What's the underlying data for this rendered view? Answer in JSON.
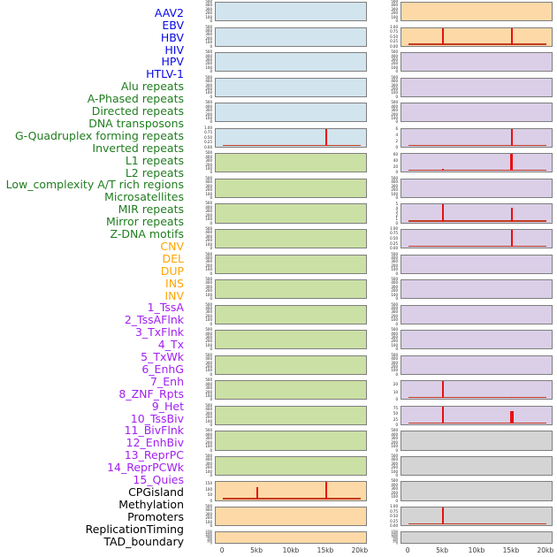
{
  "figure_title": "",
  "colors": {
    "spike": "#e81010",
    "baseline": "#c23b22",
    "panel_border": "#7e7e7e",
    "categories": {
      "virus": {
        "label": "#0808e8",
        "fill": "#d2e4ee"
      },
      "repeat": {
        "label": "#1f7d1f",
        "fill": "#cbe0a5"
      },
      "sv": {
        "label": "#ffa500",
        "fill": "#fdd9a7"
      },
      "chromatin": {
        "label": "#a21ff0",
        "fill": "#dacfe7"
      },
      "other": {
        "label": "#000000",
        "fill": "#d4d4d4"
      }
    }
  },
  "chart_data": {
    "type": "area",
    "layout": "grid-2-columns-22-rows, tracks listed column-major",
    "x": {
      "min": 0,
      "max": 20000,
      "tick_labels": [
        "0",
        "5kb",
        "10kb",
        "15kb",
        "20kb"
      ],
      "tick_values": [
        0,
        5000,
        10000,
        15000,
        20000
      ]
    },
    "xlabel": "",
    "ylabel": "",
    "grid": false,
    "legend": "none",
    "panels": {
      "left": [
        {
          "label": "AAV2",
          "cat": "virus",
          "yticks": [
            "500",
            "400",
            "300",
            "200",
            "100",
            "0"
          ],
          "ymax": 500,
          "spikes": [],
          "baseline": false
        },
        {
          "label": "EBV",
          "cat": "virus",
          "yticks": [
            "500",
            "400",
            "300",
            "200",
            "100",
            "0"
          ],
          "ymax": 500,
          "spikes": [],
          "baseline": false
        },
        {
          "label": "HBV",
          "cat": "virus",
          "yticks": [
            "500",
            "400",
            "300",
            "200",
            "100",
            "0"
          ],
          "ymax": 500,
          "spikes": [],
          "baseline": false
        },
        {
          "label": "HIV",
          "cat": "virus",
          "yticks": [
            "500",
            "400",
            "300",
            "200",
            "100",
            "0"
          ],
          "ymax": 500,
          "spikes": [],
          "baseline": false
        },
        {
          "label": "HPV",
          "cat": "virus",
          "yticks": [
            "500",
            "400",
            "300",
            "200",
            "100",
            "0"
          ],
          "ymax": 500,
          "spikes": [],
          "baseline": false
        },
        {
          "label": "HTLV-1",
          "cat": "virus",
          "yticks": [
            "1.00",
            "0.75",
            "0.50",
            "0.25",
            "0.00"
          ],
          "ymax": 1.0,
          "spikes": [
            {
              "x": 15000,
              "y": 1.0
            }
          ],
          "baseline": true
        },
        {
          "label": "Alu repeats",
          "cat": "repeat",
          "yticks": [
            "500",
            "400",
            "300",
            "200",
            "100",
            "0"
          ],
          "ymax": 500,
          "spikes": [],
          "baseline": false
        },
        {
          "label": "A-Phased repeats",
          "cat": "repeat",
          "yticks": [
            "500",
            "400",
            "300",
            "200",
            "100",
            "0"
          ],
          "ymax": 500,
          "spikes": [],
          "baseline": false
        },
        {
          "label": "Directed repeats",
          "cat": "repeat",
          "yticks": [
            "500",
            "400",
            "300",
            "200",
            "100",
            "0"
          ],
          "ymax": 500,
          "spikes": [],
          "baseline": false
        },
        {
          "label": "DNA transposons",
          "cat": "repeat",
          "yticks": [
            "500",
            "400",
            "300",
            "200",
            "100",
            "0"
          ],
          "ymax": 500,
          "spikes": [],
          "baseline": false
        },
        {
          "label": "G-Quadruplex forming repeats",
          "cat": "repeat",
          "yticks": [
            "500",
            "400",
            "300",
            "200",
            "100",
            "0"
          ],
          "ymax": 500,
          "spikes": [],
          "baseline": false
        },
        {
          "label": "Inverted repeats",
          "cat": "repeat",
          "yticks": [
            "500",
            "400",
            "300",
            "200",
            "100",
            "0"
          ],
          "ymax": 500,
          "spikes": [],
          "baseline": false
        },
        {
          "label": "L1 repeats",
          "cat": "repeat",
          "yticks": [
            "500",
            "400",
            "300",
            "200",
            "100",
            "0"
          ],
          "ymax": 500,
          "spikes": [],
          "baseline": false
        },
        {
          "label": "L2 repeats",
          "cat": "repeat",
          "yticks": [
            "500",
            "400",
            "300",
            "200",
            "100",
            "0"
          ],
          "ymax": 500,
          "spikes": [],
          "baseline": false
        },
        {
          "label": "Low_complexity A/T rich regions",
          "cat": "repeat",
          "yticks": [
            "500",
            "400",
            "300",
            "200",
            "100",
            "0"
          ],
          "ymax": 500,
          "spikes": [],
          "baseline": false
        },
        {
          "label": "Microsatellites",
          "cat": "repeat",
          "yticks": [
            "500",
            "400",
            "300",
            "200",
            "100",
            "0"
          ],
          "ymax": 500,
          "spikes": [],
          "baseline": false
        },
        {
          "label": "MIR repeats",
          "cat": "repeat",
          "yticks": [
            "500",
            "400",
            "300",
            "200",
            "100",
            "0"
          ],
          "ymax": 500,
          "spikes": [],
          "baseline": false
        },
        {
          "label": "Mirror repeats",
          "cat": "repeat",
          "yticks": [
            "500",
            "400",
            "300",
            "200",
            "100",
            "0"
          ],
          "ymax": 500,
          "spikes": [],
          "baseline": false
        },
        {
          "label": "Z-DNA motifs",
          "cat": "repeat",
          "yticks": [
            "500",
            "400",
            "300",
            "200",
            "100",
            "0"
          ],
          "ymax": 500,
          "spikes": [],
          "baseline": false
        },
        {
          "label": "CNV",
          "cat": "sv",
          "yticks": [
            "150",
            "100",
            "50",
            "0"
          ],
          "ymax": 170,
          "spikes": [
            {
              "x": 5000,
              "y": 115
            },
            {
              "x": 15000,
              "y": 170
            }
          ],
          "baseline": true
        },
        {
          "label": "DEL",
          "cat": "sv",
          "yticks": [
            "500",
            "400",
            "300",
            "200",
            "100",
            "0"
          ],
          "ymax": 500,
          "spikes": [],
          "baseline": false
        },
        {
          "label": "DUP",
          "cat": "sv",
          "yticks": [
            "1750",
            "1500",
            "1250",
            "1000",
            "750",
            "500",
            "250",
            "0"
          ],
          "ymax": 1750,
          "dense": true,
          "spikes": [],
          "baseline": false
        }
      ],
      "right": [
        {
          "label": "INS",
          "cat": "sv",
          "yticks": [
            "500",
            "400",
            "300",
            "200",
            "100",
            "0"
          ],
          "ymax": 500,
          "spikes": [],
          "baseline": false
        },
        {
          "label": "INV",
          "cat": "sv",
          "yticks": [
            "1.00",
            "0.75",
            "0.50",
            "0.25",
            "0.00"
          ],
          "ymax": 1.0,
          "spikes": [
            {
              "x": 5000,
              "y": 1.0
            },
            {
              "x": 15000,
              "y": 1.0
            }
          ],
          "baseline": true
        },
        {
          "label": "1_TssA",
          "cat": "chromatin",
          "yticks": [
            "500",
            "400",
            "300",
            "200",
            "100",
            "0"
          ],
          "ymax": 500,
          "spikes": [],
          "baseline": false
        },
        {
          "label": "2_TssAFlnk",
          "cat": "chromatin",
          "yticks": [
            "500",
            "400",
            "300",
            "200",
            "100",
            "0"
          ],
          "ymax": 500,
          "spikes": [],
          "baseline": false
        },
        {
          "label": "3_TxFlnk",
          "cat": "chromatin",
          "yticks": [
            "500",
            "400",
            "300",
            "200",
            "100",
            "0"
          ],
          "ymax": 500,
          "spikes": [],
          "baseline": false
        },
        {
          "label": "4_Tx",
          "cat": "chromatin",
          "yticks": [
            "6",
            "4",
            "2",
            "0"
          ],
          "ymax": 6.4,
          "spikes": [
            {
              "x": 15000,
              "y": 6.4
            }
          ],
          "baseline": true
        },
        {
          "label": "5_TxWk",
          "cat": "chromatin",
          "yticks": [
            "60",
            "40",
            "20",
            "0"
          ],
          "ymax": 65,
          "spikes": [
            {
              "x": 5000,
              "y": 8
            },
            {
              "x": 15000,
              "y": 65,
              "w": 3
            }
          ],
          "baseline": true
        },
        {
          "label": "6_EnhG",
          "cat": "chromatin",
          "yticks": [
            "500",
            "400",
            "300",
            "200",
            "100",
            "0"
          ],
          "ymax": 500,
          "spikes": [],
          "baseline": false
        },
        {
          "label": "7_Enh",
          "cat": "chromatin",
          "yticks": [
            "5",
            "4",
            "3",
            "2",
            "1",
            "0"
          ],
          "ymax": 5.2,
          "spikes": [
            {
              "x": 5000,
              "y": 5.2
            },
            {
              "x": 15000,
              "y": 4.1
            }
          ],
          "baseline": true
        },
        {
          "label": "8_ZNF_Rpts",
          "cat": "chromatin",
          "yticks": [
            "1.00",
            "0.75",
            "0.50",
            "0.25",
            "0.00"
          ],
          "ymax": 1.0,
          "spikes": [
            {
              "x": 15000,
              "y": 1.0
            }
          ],
          "baseline": true
        },
        {
          "label": "9_Het",
          "cat": "chromatin",
          "yticks": [
            "500",
            "400",
            "300",
            "200",
            "100",
            "0"
          ],
          "ymax": 500,
          "spikes": [],
          "baseline": false
        },
        {
          "label": "10_TssBiv",
          "cat": "chromatin",
          "yticks": [
            "500",
            "400",
            "300",
            "200",
            "100",
            "0"
          ],
          "ymax": 500,
          "spikes": [],
          "baseline": false
        },
        {
          "label": "11_BivFlnk",
          "cat": "chromatin",
          "yticks": [
            "500",
            "400",
            "300",
            "200",
            "100",
            "0"
          ],
          "ymax": 500,
          "spikes": [],
          "baseline": false
        },
        {
          "label": "12_EnhBiv",
          "cat": "chromatin",
          "yticks": [
            "500",
            "400",
            "300",
            "200",
            "100",
            "0"
          ],
          "ymax": 500,
          "spikes": [],
          "baseline": false
        },
        {
          "label": "13_ReprPC",
          "cat": "chromatin",
          "yticks": [
            "500",
            "400",
            "300",
            "200",
            "100",
            "0"
          ],
          "ymax": 500,
          "spikes": [],
          "baseline": false
        },
        {
          "label": "14_ReprPCWk",
          "cat": "chromatin",
          "yticks": [
            "20",
            "10",
            "0"
          ],
          "ymax": 26,
          "spikes": [
            {
              "x": 5000,
              "y": 26
            },
            {
              "x": 15000,
              "y": 2.5
            }
          ],
          "baseline": true
        },
        {
          "label": "15_Quies",
          "cat": "chromatin",
          "yticks": [
            "75",
            "50",
            "25",
            "0"
          ],
          "ymax": 88,
          "spikes": [
            {
              "x": 5000,
              "y": 88
            },
            {
              "x": 15000,
              "y": 62,
              "w": 3.5
            }
          ],
          "baseline": true
        },
        {
          "label": "CPGisland",
          "cat": "other",
          "yticks": [
            "500",
            "400",
            "300",
            "200",
            "100",
            "0"
          ],
          "ymax": 500,
          "spikes": [],
          "baseline": false
        },
        {
          "label": "Methylation",
          "cat": "other",
          "yticks": [
            "500",
            "400",
            "300",
            "200",
            "100",
            "0"
          ],
          "ymax": 500,
          "spikes": [],
          "baseline": false
        },
        {
          "label": "Promoters",
          "cat": "other",
          "yticks": [
            "500",
            "400",
            "300",
            "200",
            "100",
            "0"
          ],
          "ymax": 500,
          "spikes": [],
          "baseline": false
        },
        {
          "label": "ReplicationTiming",
          "cat": "other",
          "yticks": [
            "1.00",
            "0.75",
            "0.50",
            "0.25",
            "0.00"
          ],
          "ymax": 1.0,
          "spikes": [
            {
              "x": 5000,
              "y": 1.0
            }
          ],
          "baseline": true
        },
        {
          "label": "TAD_boundary",
          "cat": "other",
          "yticks": [
            "1750",
            "1500",
            "1250",
            "1000",
            "750",
            "500",
            "250",
            "0"
          ],
          "ymax": 1750,
          "dense": true,
          "spikes": [],
          "baseline": false
        }
      ]
    }
  }
}
